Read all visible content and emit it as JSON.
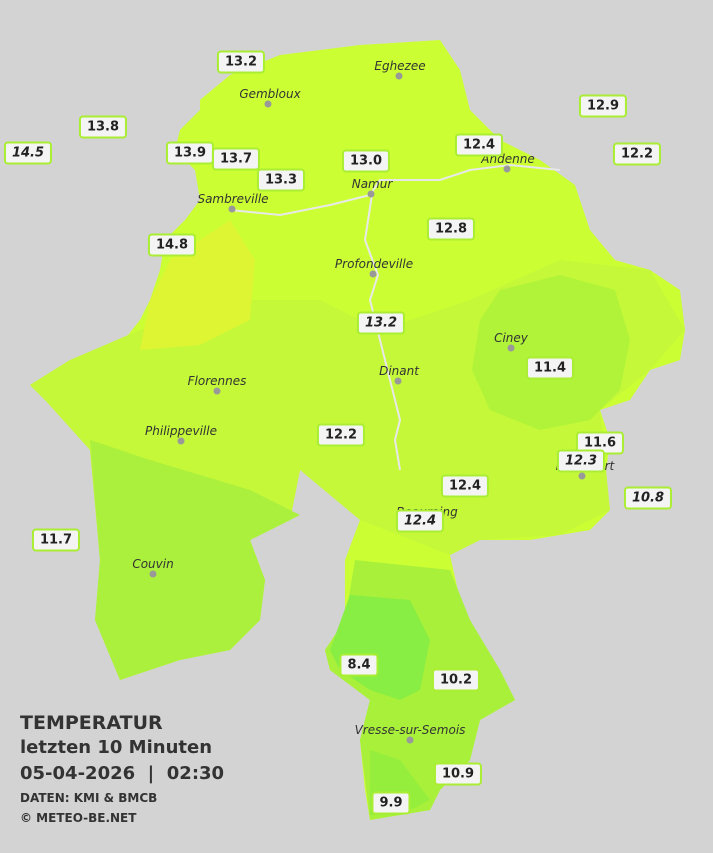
{
  "title": "TEMPERATUR",
  "subtitle": "letzten 10 Minuten",
  "datetime": "05-04-2026  |  02:30",
  "source": "DATEN: KMI & BMCB",
  "copyright": "© METEO-BE.NET",
  "cities": [
    "Eghezee",
    "Gembloux",
    "Andenne",
    "Namur",
    "Sambreville",
    "Profondeville",
    "Ciney",
    "Dinant",
    "Florennes",
    "Philippeville",
    "Rochefort",
    "Beauraing",
    "Couvin",
    "Vresse-sur-Semois"
  ],
  "stations": [
    {
      "value": "13.2",
      "italic": false
    },
    {
      "value": "13.8",
      "italic": false
    },
    {
      "value": "14.5",
      "italic": true
    },
    {
      "value": "13.9",
      "italic": false
    },
    {
      "value": "13.7",
      "italic": false
    },
    {
      "value": "13.3",
      "italic": false
    },
    {
      "value": "13.0",
      "italic": false
    },
    {
      "value": "12.4",
      "italic": false
    },
    {
      "value": "12.9",
      "italic": false
    },
    {
      "value": "12.2",
      "italic": false
    },
    {
      "value": "14.8",
      "italic": false
    },
    {
      "value": "12.8",
      "italic": false
    },
    {
      "value": "13.2",
      "italic": true
    },
    {
      "value": "11.4",
      "italic": false
    },
    {
      "value": "12.2",
      "italic": false
    },
    {
      "value": "11.6",
      "italic": false
    },
    {
      "value": "12.3",
      "italic": true
    },
    {
      "value": "12.4",
      "italic": false
    },
    {
      "value": "10.8",
      "italic": true
    },
    {
      "value": "12.4",
      "italic": true
    },
    {
      "value": "11.7",
      "italic": false
    },
    {
      "value": "8.4",
      "italic": false
    },
    {
      "value": "10.2",
      "italic": false
    },
    {
      "value": "10.9",
      "italic": false
    },
    {
      "value": "9.9",
      "italic": false
    }
  ]
}
